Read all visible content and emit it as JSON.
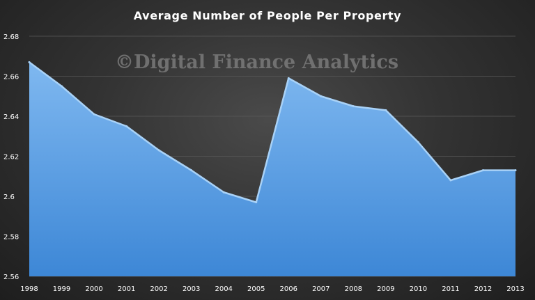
{
  "chart_data": {
    "type": "area",
    "title": "Average Number of People Per Property",
    "watermark": "©Digital Finance Analytics",
    "xlabel": "",
    "ylabel": "",
    "categories": [
      "1998",
      "1999",
      "2000",
      "2001",
      "2002",
      "2003",
      "2004",
      "2005",
      "2006",
      "2007",
      "2008",
      "2009",
      "2010",
      "2011",
      "2012",
      "2013"
    ],
    "series": [
      {
        "values": [
          2.667,
          2.655,
          2.641,
          2.635,
          2.623,
          2.613,
          2.602,
          2.597,
          2.659,
          2.65,
          2.645,
          2.643,
          2.627,
          2.608,
          2.613,
          2.613
        ]
      }
    ],
    "ylim": [
      2.56,
      2.68
    ],
    "yticks": [
      2.56,
      2.58,
      2.6,
      2.62,
      2.64,
      2.66,
      2.68
    ],
    "ytick_labels": [
      "2.56",
      "2.58",
      "2.6",
      "2.62",
      "2.64",
      "2.66",
      "2.68"
    ],
    "grid": true,
    "legend": "none",
    "colors": {
      "fill_top": "#7fb8f0",
      "fill_bottom": "#3d87d6",
      "edge": "#a9d2f7",
      "background": "#333333",
      "text": "#ffffff"
    }
  }
}
